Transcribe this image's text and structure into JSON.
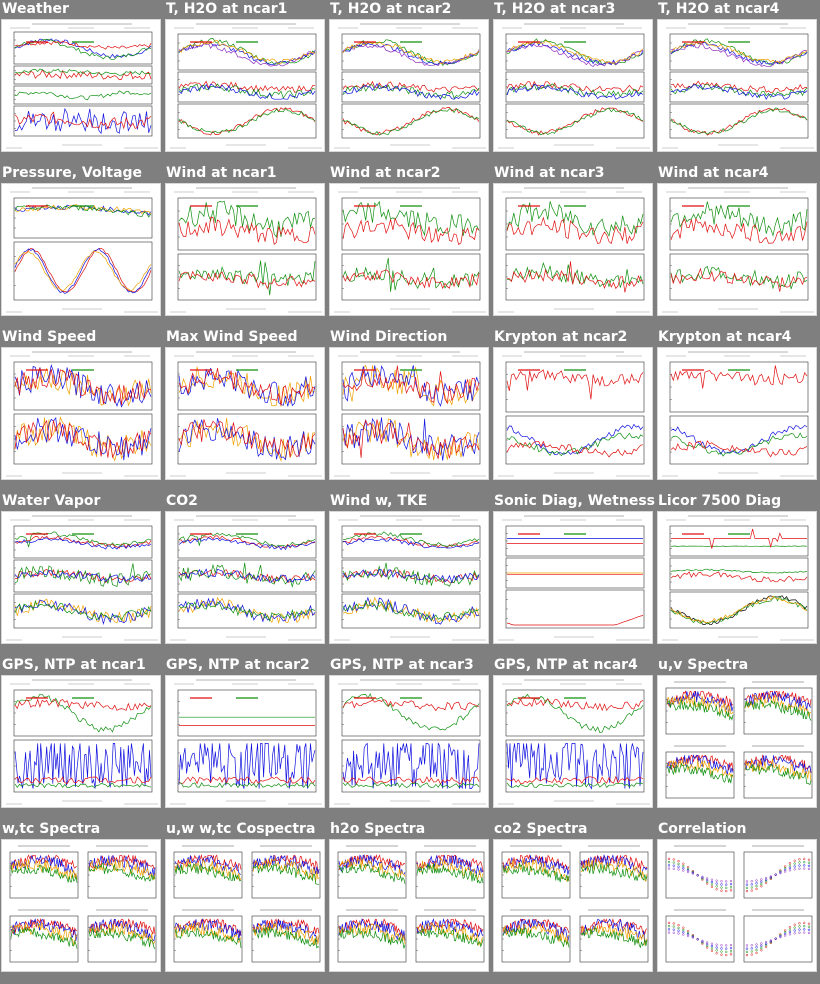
{
  "tiles": [
    {
      "label": "Weather",
      "kind": "weather"
    },
    {
      "label": "T, H2O at ncar1",
      "kind": "th"
    },
    {
      "label": "T, H2O at ncar2",
      "kind": "th"
    },
    {
      "label": "T, H2O at ncar3",
      "kind": "th"
    },
    {
      "label": "T, H2O at ncar4",
      "kind": "th"
    },
    {
      "label": "Pressure, Voltage",
      "kind": "pressure"
    },
    {
      "label": "Wind at ncar1",
      "kind": "wind"
    },
    {
      "label": "Wind at ncar2",
      "kind": "wind"
    },
    {
      "label": "Wind at ncar3",
      "kind": "wind"
    },
    {
      "label": "Wind at ncar4",
      "kind": "wind"
    },
    {
      "label": "Wind Speed",
      "kind": "speed"
    },
    {
      "label": "Max Wind Speed",
      "kind": "speed"
    },
    {
      "label": "Wind Direction",
      "kind": "dir"
    },
    {
      "label": "Krypton at ncar2",
      "kind": "krypton"
    },
    {
      "label": "Krypton at ncar4",
      "kind": "krypton"
    },
    {
      "label": "Water Vapor",
      "kind": "three"
    },
    {
      "label": "CO2",
      "kind": "three"
    },
    {
      "label": "Wind w, TKE",
      "kind": "three"
    },
    {
      "label": "Sonic Diag, Wetness",
      "kind": "sonic"
    },
    {
      "label": "Licor 7500 Diag",
      "kind": "licor"
    },
    {
      "label": "GPS, NTP at ncar1",
      "kind": "gps"
    },
    {
      "label": "GPS, NTP at ncar2",
      "kind": "gps2"
    },
    {
      "label": "GPS, NTP at ncar3",
      "kind": "gps"
    },
    {
      "label": "GPS, NTP at ncar4",
      "kind": "gps"
    },
    {
      "label": "u,v Spectra",
      "kind": "spectra"
    },
    {
      "label": "w,tc Spectra",
      "kind": "spectra"
    },
    {
      "label": "u,w w,tc Cospectra",
      "kind": "spectra"
    },
    {
      "label": "h2o Spectra",
      "kind": "spectra"
    },
    {
      "label": "co2 Spectra",
      "kind": "spectra"
    },
    {
      "label": "Correlation",
      "kind": "corr"
    }
  ],
  "colors": {
    "page_bg": "#7f7f7f",
    "title_text": "#ffffff",
    "thumb_bg": "#ffffff",
    "red": "#e01010",
    "green": "#109010",
    "blue": "#1010e0",
    "orange": "#f0a000",
    "purple": "#9030c0",
    "black": "#000000"
  }
}
